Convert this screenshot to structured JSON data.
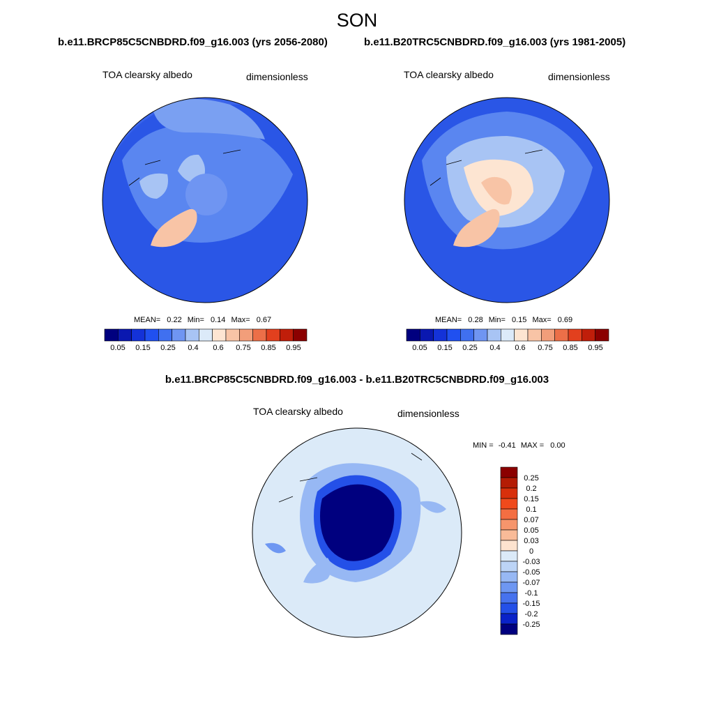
{
  "header": {
    "season": "SON",
    "case_left": "b.e11.BRCP85C5CNBDRD.f09_g16.003 (yrs 2056-2080)",
    "case_right": "b.e11.B20TRC5CNBDRD.f09_g16.003 (yrs 1981-2005)",
    "diff_title": "b.e11.BRCP85C5CNBDRD.f09_g16.003 - b.e11.B20TRC5CNBDRD.f09_g16.003"
  },
  "panels": [
    {
      "variable": "TOA clearsky albedo",
      "units": "dimensionless",
      "mean_label": "MEAN=",
      "mean": "0.22",
      "min_label": "Min=",
      "min": "0.14",
      "max_label": "Max=",
      "max": "0.67"
    },
    {
      "variable": "TOA clearsky albedo",
      "units": "dimensionless",
      "mean_label": "MEAN=",
      "mean": "0.28",
      "min_label": "Min=",
      "min": "0.15",
      "max_label": "Max=",
      "max": "0.69"
    }
  ],
  "diff_panel": {
    "variable": "TOA clearsky albedo",
    "units": "dimensionless",
    "min_label": "MIN =",
    "min": "-0.41",
    "max_label": "MAX =",
    "max": "0.00"
  },
  "chart_data": [
    {
      "type": "heatmap",
      "projection": "north polar stereographic",
      "title": "b.e11.BRCP85C5CNBDRD.f09_g16.003 (yrs 2056-2080)",
      "variable": "TOA clearsky albedo",
      "units": "dimensionless",
      "stats": {
        "mean": 0.22,
        "min": 0.14,
        "max": 0.67
      },
      "colorbar": {
        "orientation": "horizontal",
        "levels": [
          0.05,
          0.1,
          0.15,
          0.2,
          0.25,
          0.3,
          0.4,
          0.5,
          0.6,
          0.7,
          0.75,
          0.8,
          0.85,
          0.9,
          0.95
        ],
        "tick_labels": [
          "0.05",
          "0.15",
          "0.25",
          "0.4",
          "0.6",
          "0.75",
          "0.85",
          "0.95"
        ],
        "colors": [
          "#00007f",
          "#0a18b0",
          "#1432d8",
          "#2050f0",
          "#4070f0",
          "#6f95f2",
          "#a8c4f4",
          "#dceaf9",
          "#fde5d2",
          "#f8c4a6",
          "#f29e7a",
          "#ec6f48",
          "#e2401e",
          "#c01e0a",
          "#8b0000"
        ]
      }
    },
    {
      "type": "heatmap",
      "projection": "north polar stereographic",
      "title": "b.e11.B20TRC5CNBDRD.f09_g16.003 (yrs 1981-2005)",
      "variable": "TOA clearsky albedo",
      "units": "dimensionless",
      "stats": {
        "mean": 0.28,
        "min": 0.15,
        "max": 0.69
      },
      "colorbar": {
        "orientation": "horizontal",
        "levels": [
          0.05,
          0.1,
          0.15,
          0.2,
          0.25,
          0.3,
          0.4,
          0.5,
          0.6,
          0.7,
          0.75,
          0.8,
          0.85,
          0.9,
          0.95
        ],
        "tick_labels": [
          "0.05",
          "0.15",
          "0.25",
          "0.4",
          "0.6",
          "0.75",
          "0.85",
          "0.95"
        ],
        "colors": [
          "#00007f",
          "#0a18b0",
          "#1432d8",
          "#2050f0",
          "#4070f0",
          "#6f95f2",
          "#a8c4f4",
          "#dceaf9",
          "#fde5d2",
          "#f8c4a6",
          "#f29e7a",
          "#ec6f48",
          "#e2401e",
          "#c01e0a",
          "#8b0000"
        ]
      }
    },
    {
      "type": "heatmap",
      "projection": "north polar stereographic",
      "title": "b.e11.BRCP85C5CNBDRD.f09_g16.003 - b.e11.B20TRC5CNBDRD.f09_g16.003",
      "variable": "TOA clearsky albedo",
      "units": "dimensionless",
      "stats": {
        "min": -0.41,
        "max": 0.0
      },
      "colorbar": {
        "orientation": "vertical",
        "tick_labels_top_to_bottom": [
          "0.25",
          "0.2",
          "0.15",
          "0.1",
          "0.07",
          "0.05",
          "0.03",
          "0",
          "-0.03",
          "-0.05",
          "-0.07",
          "-0.1",
          "-0.15",
          "-0.2",
          "-0.25"
        ],
        "colors_top_to_bottom": [
          "#8b0000",
          "#b41c05",
          "#d8300c",
          "#f04a1c",
          "#f46e42",
          "#f6956c",
          "#f9bb98",
          "#fde3cf",
          "#dbeaf8",
          "#bcd4f6",
          "#97b8f4",
          "#6e97f2",
          "#4672ee",
          "#2450e8",
          "#0a22c8",
          "#00007f"
        ]
      }
    }
  ]
}
